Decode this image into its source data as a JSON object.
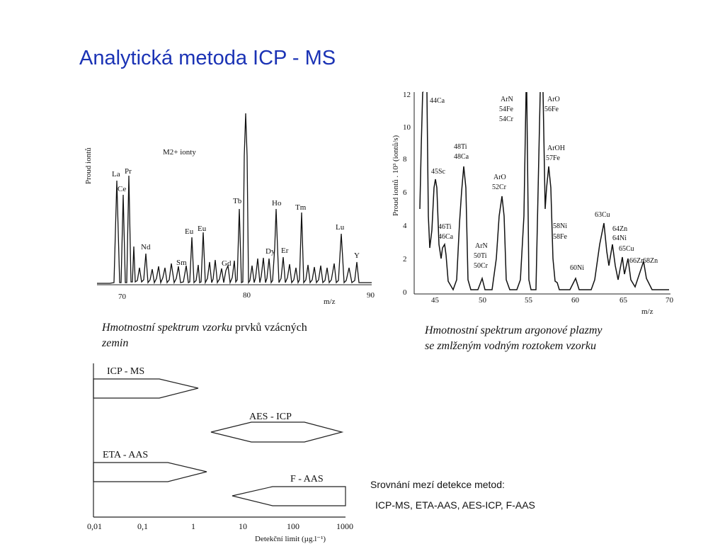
{
  "slide_title": "Analytická metoda ICP - MS",
  "fig1": {
    "ylabel": "Proud iontů",
    "xlabel": "m/z",
    "annotation": "M2+ ionty",
    "ticks": [
      "70",
      "80",
      "90"
    ],
    "peaks": [
      "La",
      "Ce",
      "Pr",
      "Nd",
      "Sm",
      "Eu",
      "Eu",
      "Gd",
      "Tb",
      "Dy",
      "Ho",
      "Er",
      "Tm",
      "Lu",
      "Y"
    ],
    "caption_italic": "Hmotnostní spektrum vzorku",
    "caption_rest": " prvků vzácných",
    "caption_line2": "zemin"
  },
  "fig2": {
    "ylabel": "Proud iontů . 10³ (iontů/s)",
    "xlabel": "m/z",
    "yticks": [
      "0",
      "2",
      "4",
      "6",
      "8",
      "10",
      "12"
    ],
    "xticks": [
      "45",
      "50",
      "55",
      "60",
      "65",
      "70"
    ],
    "labels": [
      "44Ca",
      "45Sc",
      "46Ti",
      "46Ca",
      "48Ti",
      "48Ca",
      "ArN",
      "50Ti",
      "50Cr",
      "ArO",
      "52Cr",
      "ArN",
      "54Fe",
      "54Cr",
      "ArO",
      "56Fe",
      "ArOH",
      "57Fe",
      "58Ni",
      "58Fe",
      "60Ni",
      "63Cu",
      "64Zn",
      "64Ni",
      "65Cu",
      "66Zn",
      "68Zn"
    ],
    "caption_line1": "Hmotnostní spektrum argonové plazmy",
    "caption_line2": "se zmlženým vodným roztokem vzorku"
  },
  "fig3": {
    "xlabel": "Detekční limit (µg.l⁻¹)",
    "xticks": [
      "0,01",
      "0,1",
      "1",
      "10",
      "100",
      "1000"
    ],
    "methods": [
      "ICP - MS",
      "AES - ICP",
      "ETA - AAS",
      "F - AAS"
    ]
  },
  "comparison": {
    "heading": "Srovnání mezí detekce metod:",
    "methods_line": "ICP-MS, ETA-AAS, AES-ICP, F-AAS"
  }
}
